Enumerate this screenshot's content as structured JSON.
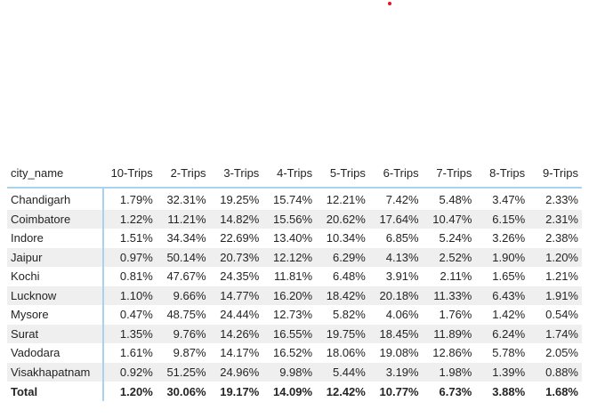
{
  "matrix": {
    "headers": [
      "city_name",
      "10-Trips",
      "2-Trips",
      "3-Trips",
      "4-Trips",
      "5-Trips",
      "6-Trips",
      "7-Trips",
      "8-Trips",
      "9-Trips"
    ],
    "rows": [
      {
        "city": "Chandigarh",
        "values": [
          "1.79%",
          "32.31%",
          "19.25%",
          "15.74%",
          "12.21%",
          "7.42%",
          "5.48%",
          "3.47%",
          "2.33%"
        ]
      },
      {
        "city": "Coimbatore",
        "values": [
          "1.22%",
          "11.21%",
          "14.82%",
          "15.56%",
          "20.62%",
          "17.64%",
          "10.47%",
          "6.15%",
          "2.31%"
        ]
      },
      {
        "city": "Indore",
        "values": [
          "1.51%",
          "34.34%",
          "22.69%",
          "13.40%",
          "10.34%",
          "6.85%",
          "5.24%",
          "3.26%",
          "2.38%"
        ]
      },
      {
        "city": "Jaipur",
        "values": [
          "0.97%",
          "50.14%",
          "20.73%",
          "12.12%",
          "6.29%",
          "4.13%",
          "2.52%",
          "1.90%",
          "1.20%"
        ]
      },
      {
        "city": "Kochi",
        "values": [
          "0.81%",
          "47.67%",
          "24.35%",
          "11.81%",
          "6.48%",
          "3.91%",
          "2.11%",
          "1.65%",
          "1.21%"
        ]
      },
      {
        "city": "Lucknow",
        "values": [
          "1.10%",
          "9.66%",
          "14.77%",
          "16.20%",
          "18.42%",
          "20.18%",
          "11.33%",
          "6.43%",
          "1.91%"
        ]
      },
      {
        "city": "Mysore",
        "values": [
          "0.47%",
          "48.75%",
          "24.44%",
          "12.73%",
          "5.82%",
          "4.06%",
          "1.76%",
          "1.42%",
          "0.54%"
        ]
      },
      {
        "city": "Surat",
        "values": [
          "1.35%",
          "9.76%",
          "14.26%",
          "16.55%",
          "19.75%",
          "18.45%",
          "11.89%",
          "6.24%",
          "1.74%"
        ]
      },
      {
        "city": "Vadodara",
        "values": [
          "1.61%",
          "9.87%",
          "14.17%",
          "16.52%",
          "18.06%",
          "19.08%",
          "12.86%",
          "5.78%",
          "2.05%"
        ]
      },
      {
        "city": "Visakhapatnam",
        "values": [
          "0.92%",
          "51.25%",
          "24.96%",
          "9.98%",
          "5.44%",
          "3.19%",
          "1.98%",
          "1.39%",
          "0.88%"
        ]
      }
    ],
    "total": {
      "city": "Total",
      "values": [
        "1.20%",
        "30.06%",
        "19.17%",
        "14.09%",
        "12.42%",
        "10.77%",
        "6.73%",
        "3.88%",
        "1.68%"
      ]
    }
  },
  "colors": {
    "accent_line": "#a8d3f0",
    "row_stripe": "#efefef",
    "text": "#252423",
    "dot": "#e81123"
  }
}
